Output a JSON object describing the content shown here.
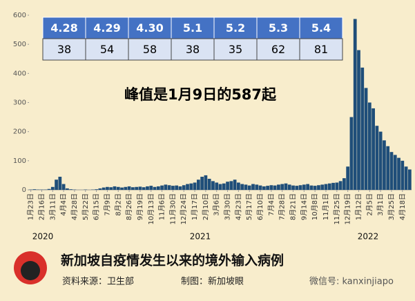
{
  "chart_data": {
    "type": "bar",
    "title": "峰值是1月9日的587起",
    "categories": [
      "1月23日",
      null,
      null,
      "2月16日",
      null,
      null,
      "3月11日",
      null,
      null,
      "4月4日",
      null,
      null,
      "4月28日",
      null,
      null,
      "5月22日",
      null,
      null,
      "6月15日",
      null,
      null,
      "7月9日",
      null,
      null,
      "8月2日",
      null,
      null,
      "8月26日",
      null,
      null,
      "9月19日",
      null,
      null,
      "10月13日",
      null,
      null,
      "11月6日",
      null,
      null,
      "11月30日",
      null,
      null,
      "12月24日",
      null,
      null,
      "1月17日",
      null,
      null,
      "2月10日",
      null,
      null,
      "3月6日",
      null,
      null,
      "3月30日",
      null,
      null,
      "4月23日",
      null,
      null,
      "5月17日",
      null,
      null,
      "6月10日",
      null,
      null,
      "7月4日",
      null,
      null,
      "7月28日",
      null,
      null,
      "8月21日",
      null,
      null,
      "9月14日",
      null,
      null,
      "10月8日",
      null,
      null,
      "11月1日",
      null,
      null,
      "11月25日",
      null,
      null,
      "12月19日",
      null,
      null,
      "1月12日",
      null,
      null,
      "2月5日",
      null,
      null,
      "3月1日",
      null,
      null,
      "3月25日",
      null,
      null,
      "4月18日",
      null,
      null
    ],
    "values": [
      1,
      2,
      1,
      1,
      1,
      3,
      10,
      35,
      45,
      20,
      5,
      2,
      1,
      0,
      0,
      1,
      0,
      1,
      2,
      5,
      8,
      10,
      9,
      12,
      10,
      8,
      10,
      12,
      9,
      10,
      11,
      9,
      12,
      14,
      10,
      12,
      15,
      18,
      16,
      14,
      15,
      12,
      16,
      20,
      22,
      25,
      35,
      45,
      50,
      38,
      30,
      25,
      20,
      22,
      28,
      30,
      35,
      25,
      20,
      18,
      15,
      20,
      18,
      15,
      12,
      14,
      16,
      15,
      18,
      20,
      22,
      18,
      15,
      14,
      16,
      18,
      20,
      15,
      14,
      16,
      18,
      20,
      22,
      24,
      25,
      30,
      40,
      80,
      250,
      587,
      480,
      420,
      350,
      300,
      280,
      220,
      200,
      170,
      150,
      130,
      120,
      110,
      100,
      80,
      70
    ],
    "color": "#1f4e79",
    "ylim": [
      0,
      600
    ],
    "yticks": [
      0,
      100,
      200,
      300,
      400,
      500,
      600
    ],
    "years": [
      "2020",
      "2021",
      "2022"
    ]
  },
  "table": {
    "header": [
      "4.28",
      "4.29",
      "4.30",
      "5.1",
      "5.2",
      "5.3",
      "5.4"
    ],
    "row": [
      "38",
      "54",
      "58",
      "38",
      "35",
      "62",
      "81"
    ]
  },
  "footer": {
    "caption": "新加坡自疫情发生以来的境外输入病例",
    "source": "资料来源：卫生部",
    "maker": "制图：新加坡眼",
    "wechat": "微信号: kanxinjiapo"
  }
}
